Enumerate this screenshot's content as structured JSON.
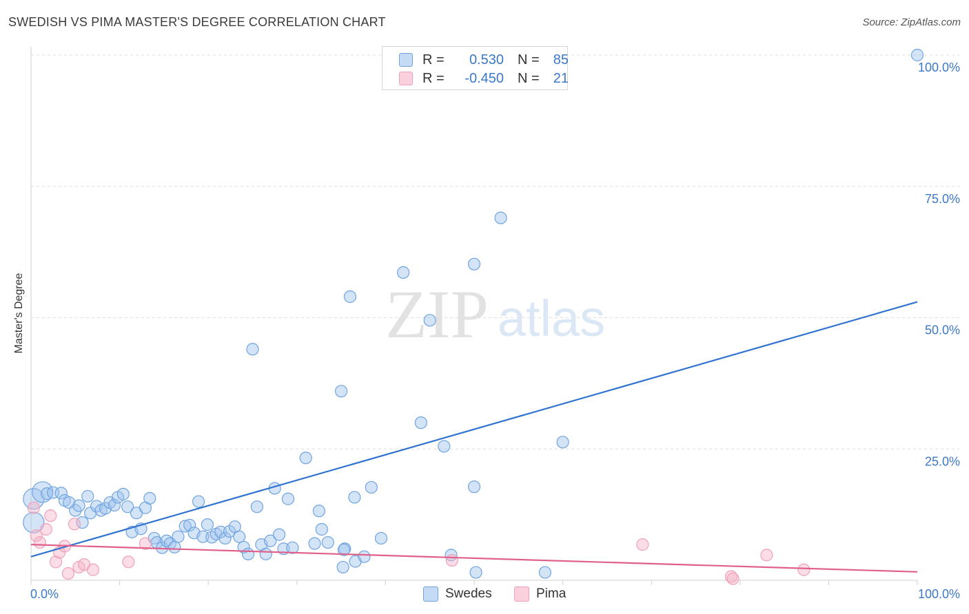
{
  "header": {
    "title": "SWEDISH VS PIMA MASTER'S DEGREE CORRELATION CHART",
    "source": "Source: ZipAtlas.com"
  },
  "watermark": {
    "zip": "ZIP",
    "atlas": "atlas"
  },
  "legend": {
    "rows": [
      {
        "r_label": "R =",
        "r_value": "0.530",
        "n_label": "N =",
        "n_value": "85",
        "color": "#6fa3e0"
      },
      {
        "r_label": "R =",
        "r_value": "-0.450",
        "n_label": "N =",
        "n_value": "21",
        "color": "#f0a0b8"
      }
    ]
  },
  "chart_data": {
    "type": "scatter",
    "title": "SWEDISH VS PIMA MASTER'S DEGREE CORRELATION CHART",
    "xlabel": "",
    "ylabel": "Master's Degree",
    "xlim": [
      0,
      100
    ],
    "ylim": [
      0,
      100
    ],
    "x_tick_labels": [
      "0.0%",
      "100.0%"
    ],
    "y_tick_labels": [
      "25.0%",
      "50.0%",
      "75.0%",
      "100.0%"
    ],
    "y_ticks": [
      25,
      50,
      75,
      100
    ],
    "grid": true,
    "legend_position": "top-center",
    "series": [
      {
        "name": "Swedes",
        "color": "#6fa3e0",
        "line_color": "#2f72d0",
        "trend": {
          "x": [
            0,
            100
          ],
          "y": [
            4.5,
            53.0
          ]
        },
        "points": [
          {
            "x": 0.3,
            "y": 15.5,
            "big": true
          },
          {
            "x": 0.3,
            "y": 11.0,
            "big": true
          },
          {
            "x": 1.3,
            "y": 16.8,
            "big": true
          },
          {
            "x": 1.8,
            "y": 16.5
          },
          {
            "x": 2.5,
            "y": 16.7
          },
          {
            "x": 3.4,
            "y": 16.6
          },
          {
            "x": 3.8,
            "y": 15.2
          },
          {
            "x": 4.3,
            "y": 14.8
          },
          {
            "x": 5.0,
            "y": 13.3
          },
          {
            "x": 5.4,
            "y": 14.2
          },
          {
            "x": 5.8,
            "y": 11.0
          },
          {
            "x": 6.4,
            "y": 16.0
          },
          {
            "x": 6.7,
            "y": 12.8
          },
          {
            "x": 7.4,
            "y": 14.1
          },
          {
            "x": 7.9,
            "y": 13.3
          },
          {
            "x": 8.4,
            "y": 13.7
          },
          {
            "x": 8.9,
            "y": 14.8
          },
          {
            "x": 9.4,
            "y": 14.3
          },
          {
            "x": 9.8,
            "y": 15.8
          },
          {
            "x": 10.4,
            "y": 16.4
          },
          {
            "x": 10.9,
            "y": 14.0
          },
          {
            "x": 11.4,
            "y": 9.2
          },
          {
            "x": 11.9,
            "y": 12.8
          },
          {
            "x": 12.4,
            "y": 9.8
          },
          {
            "x": 12.9,
            "y": 13.8
          },
          {
            "x": 13.4,
            "y": 15.6
          },
          {
            "x": 13.9,
            "y": 8.0
          },
          {
            "x": 14.2,
            "y": 7.2
          },
          {
            "x": 14.8,
            "y": 6.2
          },
          {
            "x": 15.3,
            "y": 7.5
          },
          {
            "x": 15.7,
            "y": 7.0
          },
          {
            "x": 16.2,
            "y": 6.3
          },
          {
            "x": 16.6,
            "y": 8.3
          },
          {
            "x": 17.4,
            "y": 10.3
          },
          {
            "x": 17.9,
            "y": 10.5
          },
          {
            "x": 18.4,
            "y": 9.0
          },
          {
            "x": 18.9,
            "y": 15.0
          },
          {
            "x": 19.4,
            "y": 8.3
          },
          {
            "x": 19.9,
            "y": 10.6
          },
          {
            "x": 20.4,
            "y": 8.2
          },
          {
            "x": 20.9,
            "y": 8.8
          },
          {
            "x": 21.4,
            "y": 9.2
          },
          {
            "x": 21.9,
            "y": 8.0
          },
          {
            "x": 22.4,
            "y": 9.3
          },
          {
            "x": 23.0,
            "y": 10.2
          },
          {
            "x": 23.5,
            "y": 8.3
          },
          {
            "x": 24.0,
            "y": 6.3
          },
          {
            "x": 24.5,
            "y": 5.0
          },
          {
            "x": 25.5,
            "y": 14.0
          },
          {
            "x": 26.0,
            "y": 6.8
          },
          {
            "x": 26.5,
            "y": 5.0
          },
          {
            "x": 27.0,
            "y": 7.5
          },
          {
            "x": 27.5,
            "y": 17.5
          },
          {
            "x": 28.0,
            "y": 8.7
          },
          {
            "x": 28.5,
            "y": 6.0
          },
          {
            "x": 29.0,
            "y": 15.5
          },
          {
            "x": 29.5,
            "y": 6.2
          },
          {
            "x": 31.0,
            "y": 23.3
          },
          {
            "x": 32.0,
            "y": 7.0
          },
          {
            "x": 32.5,
            "y": 13.2
          },
          {
            "x": 32.8,
            "y": 9.7
          },
          {
            "x": 33.5,
            "y": 7.2
          },
          {
            "x": 35.4,
            "y": 6.0
          },
          {
            "x": 35.2,
            "y": 2.5
          },
          {
            "x": 36.6,
            "y": 3.6
          },
          {
            "x": 37.6,
            "y": 4.5
          },
          {
            "x": 38.4,
            "y": 17.7
          },
          {
            "x": 39.5,
            "y": 8.0
          },
          {
            "x": 36.5,
            "y": 15.8
          },
          {
            "x": 25.0,
            "y": 44.0
          },
          {
            "x": 35.0,
            "y": 36.0
          },
          {
            "x": 35.3,
            "y": 5.8
          },
          {
            "x": 44.0,
            "y": 30.0
          },
          {
            "x": 47.4,
            "y": 4.8
          },
          {
            "x": 50.2,
            "y": 1.5
          },
          {
            "x": 46.6,
            "y": 25.5
          },
          {
            "x": 50.0,
            "y": 17.8
          },
          {
            "x": 36.0,
            "y": 54.0
          },
          {
            "x": 42.0,
            "y": 58.6
          },
          {
            "x": 50.0,
            "y": 60.2
          },
          {
            "x": 53.0,
            "y": 69.0
          },
          {
            "x": 45.0,
            "y": 49.5
          },
          {
            "x": 60.0,
            "y": 26.3
          },
          {
            "x": 58.0,
            "y": 1.5
          },
          {
            "x": 100.0,
            "y": 100.0
          }
        ]
      },
      {
        "name": "Pima",
        "color": "#f0a0b8",
        "line_color": "#e0608a",
        "trend": {
          "x": [
            0,
            100
          ],
          "y": [
            6.8,
            1.6
          ]
        },
        "points": [
          {
            "x": 0.3,
            "y": 13.8
          },
          {
            "x": 0.6,
            "y": 8.5
          },
          {
            "x": 1.0,
            "y": 7.2
          },
          {
            "x": 1.7,
            "y": 9.7
          },
          {
            "x": 2.2,
            "y": 12.3
          },
          {
            "x": 2.8,
            "y": 3.5
          },
          {
            "x": 3.2,
            "y": 5.3
          },
          {
            "x": 3.8,
            "y": 6.5
          },
          {
            "x": 4.2,
            "y": 1.3
          },
          {
            "x": 4.9,
            "y": 10.7
          },
          {
            "x": 5.4,
            "y": 2.5
          },
          {
            "x": 6.0,
            "y": 3.0
          },
          {
            "x": 7.0,
            "y": 2.0
          },
          {
            "x": 11.0,
            "y": 3.5
          },
          {
            "x": 12.9,
            "y": 7.0
          },
          {
            "x": 47.5,
            "y": 3.8
          },
          {
            "x": 69.0,
            "y": 6.8
          },
          {
            "x": 79.0,
            "y": 0.7
          },
          {
            "x": 79.2,
            "y": 0.3
          },
          {
            "x": 83.0,
            "y": 4.8
          },
          {
            "x": 87.2,
            "y": 2.0
          }
        ]
      }
    ]
  },
  "bottom_legend": {
    "items": [
      {
        "label": "Swedes"
      },
      {
        "label": "Pima"
      }
    ]
  }
}
